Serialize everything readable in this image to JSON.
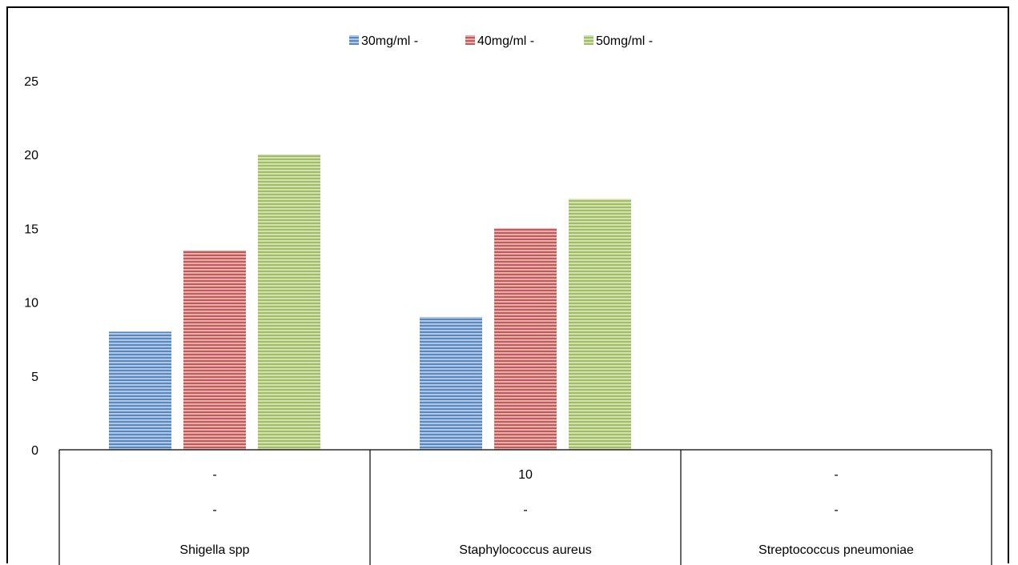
{
  "chart_data": {
    "type": "bar",
    "categories": [
      "Shigella spp",
      "Staphylococcus aureus",
      "Streptococcus pneumoniae"
    ],
    "table_rows": [
      [
        "-",
        "10",
        "-"
      ],
      [
        "-",
        "-",
        "-"
      ]
    ],
    "series": [
      {
        "name": "30mg/ml -",
        "color": "#4F81BD",
        "values": [
          8,
          9,
          0
        ]
      },
      {
        "name": "40mg/ml -",
        "color": "#C0504D",
        "values": [
          13.5,
          15,
          0
        ]
      },
      {
        "name": "50mg/ml -",
        "color": "#9BBB59",
        "values": [
          20,
          17,
          0
        ]
      }
    ],
    "yticks": [
      "0",
      "5",
      "10",
      "15",
      "20",
      "25"
    ],
    "ylim": [
      0,
      25
    ],
    "grid": false,
    "legend_position": "top",
    "title": "",
    "xlabel": "",
    "ylabel": ""
  }
}
